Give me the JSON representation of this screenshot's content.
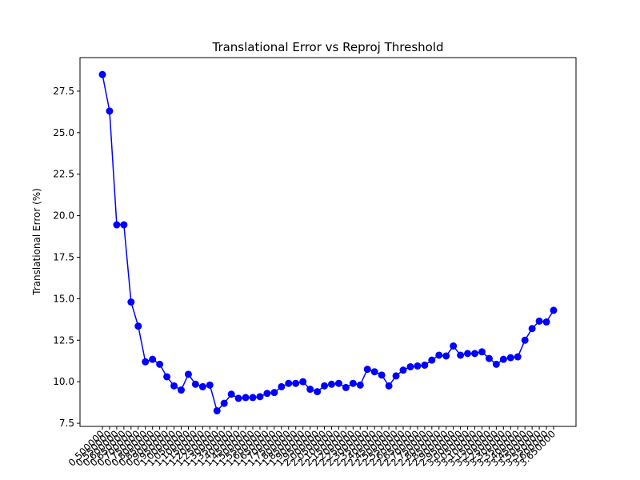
{
  "chart_data": {
    "type": "line",
    "title": "Translational Error vs Reproj Threshold",
    "ylabel": "Translational Error (%)",
    "categories": [
      "0.500000",
      "0.550000",
      "0.600000",
      "0.650000",
      "0.700000",
      "0.750000",
      "0.800000",
      "0.850000",
      "0.900000",
      "0.950000",
      "1.000000",
      "1.050000",
      "1.100000",
      "1.150000",
      "1.200000",
      "1.250000",
      "1.300000",
      "1.350000",
      "1.400000",
      "1.450000",
      "1.500000",
      "1.550000",
      "1.600000",
      "1.650000",
      "1.700000",
      "1.750000",
      "1.800000",
      "1.850000",
      "1.900000",
      "1.950000",
      "2.000000",
      "2.050000",
      "2.100000",
      "2.150000",
      "2.200000",
      "2.250000",
      "2.300000",
      "2.350000",
      "2.400000",
      "2.450000",
      "2.500000",
      "2.550000",
      "2.600000",
      "2.650000",
      "2.700000",
      "2.750000",
      "2.800000",
      "2.850000",
      "2.900000",
      "2.950000",
      "3.000000",
      "3.050000",
      "3.100000",
      "3.150000",
      "3.200000",
      "3.250000",
      "3.300000",
      "3.350000",
      "3.400000",
      "3.450000",
      "3.500000",
      "3.550000",
      "3.600000",
      "3.650000"
    ],
    "series": [
      {
        "name": "Translational Error",
        "color": "#0000ff",
        "values": [
          28.5,
          26.3,
          19.45,
          19.45,
          14.8,
          13.35,
          11.2,
          11.35,
          11.05,
          10.3,
          9.75,
          9.5,
          10.45,
          9.85,
          9.7,
          9.8,
          8.25,
          8.7,
          9.25,
          9.0,
          9.05,
          9.05,
          9.1,
          9.3,
          9.35,
          9.7,
          9.9,
          9.9,
          10.0,
          9.55,
          9.4,
          9.75,
          9.85,
          9.9,
          9.65,
          9.9,
          9.8,
          10.75,
          10.6,
          10.4,
          9.75,
          10.35,
          10.7,
          10.9,
          10.95,
          11.0,
          11.3,
          11.6,
          11.55,
          12.15,
          11.6,
          11.7,
          11.7,
          11.8,
          11.4,
          11.05,
          11.35,
          11.45,
          11.5,
          12.5,
          13.2,
          13.65,
          13.6,
          14.3
        ]
      }
    ],
    "ylim": [
      7.31,
      29.52
    ],
    "yticks": [
      7.5,
      {
        "value": 10,
        "label": "10.0"
      },
      12.5,
      {
        "value": 15,
        "label": "15.0"
      },
      17.5,
      {
        "value": 20,
        "label": "20.0"
      },
      22.5,
      {
        "value": 25,
        "label": "25.0"
      },
      27.5
    ]
  }
}
